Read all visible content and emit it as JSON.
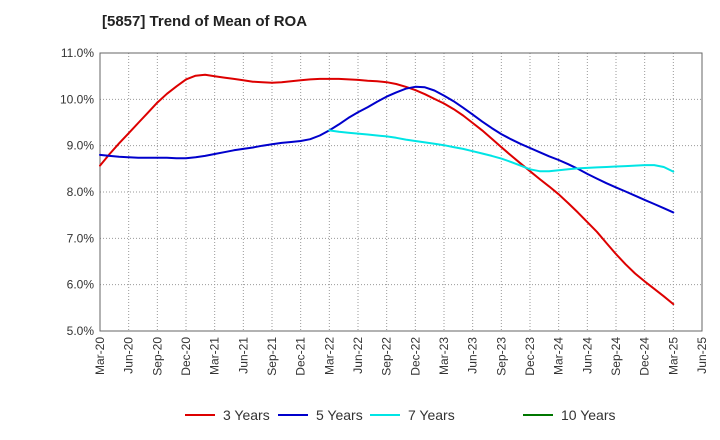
{
  "chart_data": {
    "type": "line",
    "title": "[5857]  Trend of Mean of ROA",
    "xlabel": "",
    "ylabel": "",
    "categories": [
      "Mar-20",
      "Jun-20",
      "Sep-20",
      "Dec-20",
      "Mar-21",
      "Jun-21",
      "Sep-21",
      "Dec-21",
      "Mar-22",
      "Jun-22",
      "Sep-22",
      "Dec-22",
      "Mar-23",
      "Jun-23",
      "Sep-23",
      "Dec-23",
      "Mar-24",
      "Jun-24",
      "Sep-24",
      "Dec-24",
      "Mar-25",
      "Jun-25"
    ],
    "ylim": [
      5.0,
      11.0
    ],
    "yticks": [
      5.0,
      6.0,
      7.0,
      8.0,
      9.0,
      10.0,
      11.0
    ],
    "ytick_labels": [
      "5.0%",
      "6.0%",
      "7.0%",
      "8.0%",
      "9.0%",
      "10.0%",
      "11.0%"
    ],
    "grid": true,
    "legend_position": "bottom",
    "series": [
      {
        "name": "3 Years",
        "color": "#dd0000",
        "x": [
          "Mar-20",
          "Apr-20",
          "May-20",
          "Jun-20",
          "Jul-20",
          "Aug-20",
          "Sep-20",
          "Oct-20",
          "Nov-20",
          "Dec-20",
          "Jan-21",
          "Feb-21",
          "Mar-21",
          "Apr-21",
          "May-21",
          "Jun-21",
          "Jul-21",
          "Aug-21",
          "Sep-21",
          "Oct-21",
          "Nov-21",
          "Dec-21",
          "Jan-22",
          "Feb-22",
          "Mar-22",
          "Apr-22",
          "May-22",
          "Jun-22",
          "Jul-22",
          "Aug-22",
          "Sep-22",
          "Oct-22",
          "Nov-22",
          "Dec-22",
          "Jan-23",
          "Feb-23",
          "Mar-23",
          "Apr-23",
          "May-23",
          "Jun-23",
          "Jul-23",
          "Aug-23",
          "Sep-23",
          "Oct-23",
          "Nov-23",
          "Dec-23",
          "Jan-24",
          "Feb-24",
          "Mar-24",
          "Apr-24",
          "May-24",
          "Jun-24",
          "Jul-24",
          "Aug-24",
          "Sep-24",
          "Oct-24",
          "Nov-24",
          "Dec-24",
          "Jan-25",
          "Feb-25",
          "Mar-25"
        ],
        "values": [
          8.57,
          8.82,
          9.05,
          9.27,
          9.49,
          9.71,
          9.93,
          10.12,
          10.28,
          10.43,
          10.51,
          10.53,
          10.5,
          10.47,
          10.44,
          10.41,
          10.38,
          10.37,
          10.36,
          10.37,
          10.39,
          10.41,
          10.43,
          10.44,
          10.44,
          10.44,
          10.43,
          10.42,
          10.4,
          10.39,
          10.37,
          10.33,
          10.27,
          10.2,
          10.11,
          10.01,
          9.91,
          9.79,
          9.65,
          9.49,
          9.33,
          9.15,
          8.97,
          8.79,
          8.62,
          8.45,
          8.28,
          8.12,
          7.95,
          7.76,
          7.56,
          7.35,
          7.14,
          6.9,
          6.66,
          6.44,
          6.24,
          6.07,
          5.91,
          5.75,
          5.58
        ]
      },
      {
        "name": "5 Years",
        "color": "#0000cc",
        "x": [
          "Mar-20",
          "Apr-20",
          "May-20",
          "Jun-20",
          "Jul-20",
          "Aug-20",
          "Sep-20",
          "Oct-20",
          "Nov-20",
          "Dec-20",
          "Jan-21",
          "Feb-21",
          "Mar-21",
          "Apr-21",
          "May-21",
          "Jun-21",
          "Jul-21",
          "Aug-21",
          "Sep-21",
          "Oct-21",
          "Nov-21",
          "Dec-21",
          "Jan-22",
          "Feb-22",
          "Mar-22",
          "Apr-22",
          "May-22",
          "Jun-22",
          "Jul-22",
          "Aug-22",
          "Sep-22",
          "Oct-22",
          "Nov-22",
          "Dec-22",
          "Jan-23",
          "Feb-23",
          "Mar-23",
          "Apr-23",
          "May-23",
          "Jun-23",
          "Jul-23",
          "Aug-23",
          "Sep-23",
          "Oct-23",
          "Nov-23",
          "Dec-23",
          "Jan-24",
          "Feb-24",
          "Mar-24",
          "Apr-24",
          "May-24",
          "Jun-24",
          "Jul-24",
          "Aug-24",
          "Sep-24",
          "Oct-24",
          "Nov-24",
          "Dec-24",
          "Jan-25",
          "Feb-25",
          "Mar-25"
        ],
        "values": [
          8.8,
          8.78,
          8.76,
          8.75,
          8.74,
          8.74,
          8.74,
          8.74,
          8.73,
          8.73,
          8.75,
          8.78,
          8.82,
          8.86,
          8.9,
          8.93,
          8.96,
          9.0,
          9.03,
          9.06,
          9.08,
          9.1,
          9.14,
          9.22,
          9.33,
          9.46,
          9.6,
          9.72,
          9.83,
          9.95,
          10.06,
          10.15,
          10.23,
          10.27,
          10.26,
          10.19,
          10.08,
          9.96,
          9.82,
          9.67,
          9.52,
          9.38,
          9.25,
          9.14,
          9.04,
          8.95,
          8.86,
          8.77,
          8.69,
          8.6,
          8.5,
          8.39,
          8.29,
          8.19,
          8.1,
          8.01,
          7.92,
          7.83,
          7.74,
          7.65,
          7.56
        ]
      },
      {
        "name": "7 Years",
        "color": "#00e5e5",
        "x": [
          "Mar-22",
          "Apr-22",
          "May-22",
          "Jun-22",
          "Jul-22",
          "Aug-22",
          "Sep-22",
          "Oct-22",
          "Nov-22",
          "Dec-22",
          "Jan-23",
          "Feb-23",
          "Mar-23",
          "Apr-23",
          "May-23",
          "Jun-23",
          "Jul-23",
          "Aug-23",
          "Sep-23",
          "Oct-23",
          "Nov-23",
          "Dec-23",
          "Jan-24",
          "Feb-24",
          "Mar-24",
          "Apr-24",
          "May-24",
          "Jun-24",
          "Jul-24",
          "Aug-24",
          "Sep-24",
          "Oct-24",
          "Nov-24",
          "Dec-24",
          "Jan-25",
          "Feb-25",
          "Mar-25"
        ],
        "values": [
          9.33,
          9.3,
          9.28,
          9.26,
          9.24,
          9.22,
          9.2,
          9.17,
          9.13,
          9.1,
          9.07,
          9.04,
          9.01,
          8.97,
          8.93,
          8.88,
          8.83,
          8.78,
          8.72,
          8.65,
          8.57,
          8.49,
          8.45,
          8.45,
          8.47,
          8.49,
          8.51,
          8.52,
          8.53,
          8.54,
          8.55,
          8.56,
          8.57,
          8.58,
          8.58,
          8.54,
          8.44
        ]
      },
      {
        "name": "10 Years",
        "color": "#007700",
        "x": [],
        "values": []
      }
    ]
  }
}
